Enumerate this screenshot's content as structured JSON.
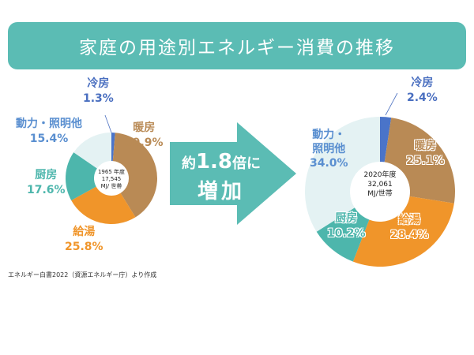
{
  "title": "家庭の用途別エネルギー消費の推移",
  "arrow": {
    "line1_prefix": "約",
    "line1_number": "1.8",
    "line1_suffix": "倍に",
    "line2": "増加"
  },
  "source": "エネルギー白書2022（資源エネルギー庁）より作成",
  "colors": {
    "cooling": "#4a74c9",
    "heating": "#b98a55",
    "hotwater": "#f0952a",
    "kitchen": "#4db6ac",
    "power": "#e4f2f3",
    "banner": "#5bbcb4"
  },
  "chart_data": [
    {
      "type": "pie",
      "donut": true,
      "center_label": [
        "1965 年度",
        "17,545",
        "MJ/ 世帯"
      ],
      "categories": [
        "冷房",
        "暖房",
        "給湯",
        "厨房",
        "動力・照明他"
      ],
      "values": [
        1.3,
        39.9,
        25.8,
        17.6,
        15.4
      ],
      "labels": [
        "1.3%",
        "39.9%",
        "25.8%",
        "17.6%",
        "15.4%"
      ]
    },
    {
      "type": "pie",
      "donut": true,
      "center_label": [
        "2020年度",
        "32,061",
        "MJ/世帯"
      ],
      "categories": [
        "冷房",
        "暖房",
        "給湯",
        "厨房",
        "動力・\n照明他"
      ],
      "values": [
        2.4,
        25.1,
        28.4,
        10.2,
        34.0
      ],
      "labels": [
        "2.4%",
        "25.1%",
        "28.4%",
        "10.2%",
        "34.0%"
      ]
    }
  ]
}
